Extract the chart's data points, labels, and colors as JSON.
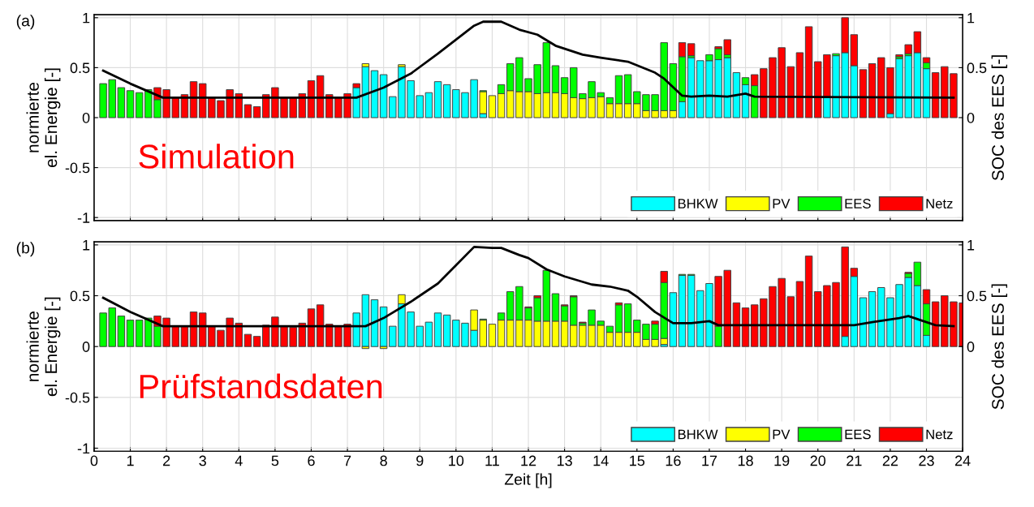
{
  "chart_data": [
    {
      "type": "bar",
      "stacked": true,
      "annotations": [
        "(a)",
        "Simulation"
      ],
      "ylabel": "normierte\nel. Energie [-]",
      "y2label": "SOC des EES [-]",
      "xlim": [
        0,
        24
      ],
      "xticks": [
        0,
        1,
        2,
        3,
        4,
        5,
        6,
        7,
        8,
        9,
        10,
        11,
        12,
        13,
        14,
        15,
        16,
        17,
        18,
        19,
        20,
        21,
        22,
        23,
        24
      ],
      "ylim": [
        -1.03,
        1.03
      ],
      "yticks": [
        -1,
        -0.5,
        0,
        0.5,
        1
      ],
      "y2lim": [
        -1.03,
        1.03
      ],
      "y2ticks": [
        0,
        0.5,
        1
      ],
      "grid": true,
      "legend": "bottom right",
      "tick_labels": "y",
      "x": [
        0.25,
        0.5,
        0.75,
        1,
        1.25,
        1.5,
        1.75,
        2,
        2.25,
        2.5,
        2.75,
        3,
        3.25,
        3.5,
        3.75,
        4,
        4.25,
        4.5,
        4.75,
        5,
        5.25,
        5.5,
        5.75,
        6,
        6.25,
        6.5,
        6.75,
        7,
        7.25,
        7.5,
        7.75,
        8,
        8.25,
        8.5,
        8.75,
        9,
        9.25,
        9.5,
        9.75,
        10,
        10.25,
        10.5,
        10.75,
        11,
        11.25,
        11.5,
        11.75,
        12,
        12.25,
        12.5,
        12.75,
        13,
        13.25,
        13.5,
        13.75,
        14,
        14.25,
        14.5,
        14.75,
        15,
        15.25,
        15.5,
        15.75,
        16,
        16.25,
        16.5,
        16.75,
        17,
        17.25,
        17.5,
        17.75,
        18,
        18.25,
        18.5,
        18.75,
        19,
        19.25,
        19.5,
        19.75,
        20,
        20.25,
        20.5,
        20.75,
        21,
        21.25,
        21.5,
        21.75,
        22,
        22.25,
        22.5,
        22.75,
        23,
        23.25,
        23.5,
        23.75
      ],
      "series": [
        {
          "name": "BHKW",
          "color": "#00ffff",
          "values": [
            null,
            null,
            null,
            null,
            null,
            null,
            null,
            null,
            null,
            null,
            null,
            null,
            null,
            null,
            null,
            null,
            null,
            null,
            null,
            null,
            null,
            null,
            null,
            null,
            null,
            null,
            null,
            null,
            0.3,
            0.51,
            0.47,
            0.43,
            0.21,
            0.51,
            0.37,
            0.22,
            0.25,
            0.36,
            0.33,
            0.28,
            0.25,
            0.38,
            0.04,
            null,
            null,
            null,
            null,
            null,
            null,
            null,
            null,
            null,
            null,
            null,
            null,
            null,
            null,
            null,
            null,
            null,
            null,
            null,
            null,
            null,
            0.16,
            0.6,
            0.57,
            0.57,
            0.58,
            0.6,
            0.45,
            0.33,
            null,
            null,
            null,
            null,
            null,
            null,
            null,
            null,
            0.21,
            0.62,
            0.65,
            0.52,
            null,
            null,
            null,
            0.04,
            0.59,
            0.62,
            0.65,
            0.49,
            null,
            null,
            null
          ]
        },
        {
          "name": "PV",
          "color": "#ffff00",
          "values": [
            null,
            null,
            null,
            null,
            null,
            null,
            null,
            null,
            null,
            null,
            null,
            null,
            null,
            null,
            null,
            null,
            null,
            null,
            null,
            null,
            null,
            null,
            null,
            null,
            null,
            null,
            null,
            null,
            null,
            0.03,
            null,
            null,
            null,
            0.02,
            null,
            null,
            null,
            null,
            null,
            null,
            null,
            null,
            0.22,
            0.22,
            0.24,
            0.27,
            0.26,
            0.26,
            0.24,
            0.25,
            0.25,
            0.24,
            0.2,
            0.19,
            0.2,
            0.21,
            0.14,
            0.14,
            0.14,
            0.14,
            0.07,
            0.07,
            0.07,
            0.07,
            null,
            null,
            null,
            null,
            null,
            null,
            null,
            null,
            null,
            null,
            null,
            null,
            null,
            null,
            null,
            null,
            null,
            null,
            null,
            null,
            null,
            null,
            null,
            null,
            null,
            null,
            null,
            null,
            null,
            null,
            null
          ]
        },
        {
          "name": "EES",
          "color": "#00ff00",
          "values": [
            0.34,
            0.38,
            0.3,
            0.27,
            0.25,
            0.28,
            0.18,
            null,
            null,
            null,
            null,
            null,
            null,
            null,
            null,
            null,
            null,
            null,
            null,
            null,
            null,
            null,
            null,
            null,
            null,
            null,
            null,
            null,
            null,
            null,
            null,
            null,
            null,
            null,
            null,
            null,
            null,
            null,
            null,
            null,
            null,
            null,
            0.01,
            null,
            0.09,
            0.27,
            0.34,
            0.13,
            0.29,
            0.5,
            0.27,
            0.16,
            0.3,
            0.05,
            0.16,
            0.04,
            0.06,
            0.28,
            0.29,
            0.12,
            0.16,
            0.16,
            0.68,
            0.47,
            0.45,
            0.02,
            null,
            0.06,
            0.11,
            0.03,
            null,
            0.07,
            0.32,
            null,
            null,
            null,
            null,
            null,
            null,
            null,
            null,
            0.02,
            null,
            null,
            null,
            null,
            null,
            null,
            0.02,
            0.02,
            null,
            0.06,
            null,
            null,
            null
          ]
        },
        {
          "name": "Netz",
          "color": "#ff0000",
          "values": [
            null,
            null,
            null,
            null,
            null,
            null,
            0.12,
            0.28,
            0.2,
            0.23,
            0.36,
            0.34,
            0.2,
            0.17,
            0.28,
            0.24,
            0.13,
            0.11,
            0.23,
            0.3,
            0.2,
            0.2,
            0.24,
            0.37,
            0.42,
            0.23,
            0.2,
            0.24,
            0.04,
            null,
            null,
            null,
            null,
            null,
            null,
            null,
            null,
            null,
            null,
            null,
            null,
            null,
            null,
            null,
            null,
            null,
            null,
            null,
            null,
            null,
            null,
            null,
            null,
            null,
            null,
            null,
            null,
            null,
            null,
            null,
            null,
            null,
            null,
            null,
            0.14,
            0.12,
            null,
            null,
            0.02,
            0.15,
            null,
            null,
            0.11,
            0.49,
            0.6,
            0.7,
            0.51,
            0.65,
            0.91,
            0.56,
            0.42,
            null,
            0.35,
            0.31,
            0.48,
            0.54,
            0.6,
            0.46,
            0.02,
            0.09,
            0.21,
            0.05,
            0.45,
            0.51,
            0.44
          ]
        },
        {
          "type": "line",
          "axis": "y2",
          "color": "#000000",
          "x": [
            0.25,
            1.0,
            1.9,
            7.25,
            8,
            8.75,
            9.5,
            10,
            10.5,
            10.75,
            11.25,
            11.75,
            12.25,
            12.75,
            13.5,
            14,
            14.75,
            15.5,
            15.75,
            16.25,
            16.5,
            17,
            17.5,
            18,
            18.25,
            23.75
          ],
          "values": [
            0.47,
            0.34,
            0.2,
            0.2,
            0.3,
            0.44,
            0.64,
            0.78,
            0.92,
            0.96,
            0.96,
            0.88,
            0.83,
            0.72,
            0.63,
            0.6,
            0.56,
            0.45,
            0.39,
            0.22,
            0.21,
            0.22,
            0.21,
            0.24,
            0.21,
            0.2
          ]
        }
      ]
    },
    {
      "type": "bar",
      "stacked": true,
      "annotations": [
        "(b)",
        "Prüfstandsdaten"
      ],
      "xlabel": "Zeit [h]",
      "ylabel": "normierte\nel. Energie [-]",
      "y2label": "SOC des EES [-]",
      "xlim": [
        0,
        24
      ],
      "xticks": [
        0,
        1,
        2,
        3,
        4,
        5,
        6,
        7,
        8,
        9,
        10,
        11,
        12,
        13,
        14,
        15,
        16,
        17,
        18,
        19,
        20,
        21,
        22,
        23,
        24
      ],
      "ylim": [
        -1.03,
        1.03
      ],
      "yticks": [
        -1,
        -0.5,
        0,
        0.5,
        1
      ],
      "y2lim": [
        -1.03,
        1.03
      ],
      "y2ticks": [
        0,
        0.5,
        1
      ],
      "grid": true,
      "legend": "bottom right",
      "x": [
        0.25,
        0.5,
        0.75,
        1,
        1.25,
        1.5,
        1.75,
        2,
        2.25,
        2.5,
        2.75,
        3,
        3.25,
        3.5,
        3.75,
        4,
        4.25,
        4.5,
        4.75,
        5,
        5.25,
        5.5,
        5.75,
        6,
        6.25,
        6.5,
        6.75,
        7,
        7.25,
        7.5,
        7.75,
        8,
        8.25,
        8.5,
        8.75,
        9,
        9.25,
        9.5,
        9.75,
        10,
        10.25,
        10.5,
        10.75,
        11,
        11.25,
        11.5,
        11.75,
        12,
        12.25,
        12.5,
        12.75,
        13,
        13.25,
        13.5,
        13.75,
        14,
        14.25,
        14.5,
        14.75,
        15,
        15.25,
        15.5,
        15.75,
        16,
        16.25,
        16.5,
        16.75,
        17,
        17.25,
        17.5,
        17.75,
        18,
        18.25,
        18.5,
        18.75,
        19,
        19.25,
        19.5,
        19.75,
        20,
        20.25,
        20.5,
        20.75,
        21,
        21.25,
        21.5,
        21.75,
        22,
        22.25,
        22.5,
        22.75,
        23,
        23.25,
        23.5,
        23.75,
        24
      ],
      "series": [
        {
          "name": "BHKW",
          "color": "#00ffff",
          "values": [
            null,
            null,
            null,
            null,
            null,
            null,
            null,
            null,
            null,
            null,
            null,
            null,
            null,
            null,
            null,
            null,
            null,
            null,
            null,
            null,
            null,
            null,
            null,
            null,
            null,
            null,
            null,
            null,
            0.33,
            0.51,
            0.46,
            0.39,
            0.2,
            0.42,
            0.34,
            0.2,
            0.24,
            0.33,
            0.31,
            0.26,
            0.23,
            0.16,
            null,
            null,
            null,
            null,
            null,
            null,
            null,
            null,
            null,
            null,
            null,
            null,
            null,
            null,
            null,
            null,
            null,
            null,
            null,
            null,
            0.02,
            0.53,
            0.7,
            0.7,
            0.55,
            0.62,
            null,
            null,
            null,
            null,
            null,
            null,
            null,
            null,
            null,
            null,
            null,
            null,
            null,
            null,
            0.1,
            0.69,
            0.48,
            0.54,
            0.58,
            0.48,
            0.61,
            0.68,
            0.6,
            0.11,
            null,
            null,
            null,
            null
          ]
        },
        {
          "name": "PV",
          "color": "#ffff00",
          "values": [
            null,
            null,
            null,
            null,
            null,
            null,
            null,
            null,
            null,
            null,
            null,
            null,
            null,
            null,
            null,
            null,
            null,
            null,
            null,
            null,
            null,
            null,
            null,
            null,
            null,
            null,
            null,
            null,
            null,
            -0.02,
            null,
            -0.02,
            null,
            0.09,
            null,
            null,
            null,
            null,
            null,
            null,
            null,
            0.2,
            0.26,
            0.22,
            0.26,
            0.26,
            0.26,
            0.26,
            0.25,
            0.25,
            0.25,
            0.25,
            0.21,
            0.21,
            0.21,
            0.21,
            0.14,
            0.14,
            0.14,
            0.14,
            0.07,
            0.07,
            0.06,
            null,
            null,
            null,
            null,
            null,
            null,
            null,
            null,
            null,
            null,
            null,
            null,
            null,
            null,
            null,
            null,
            null,
            null,
            null,
            null,
            null,
            null,
            null,
            null,
            null,
            null,
            null,
            null,
            null,
            null,
            null,
            null,
            null
          ]
        },
        {
          "name": "EES",
          "color": "#00ff00",
          "values": [
            0.33,
            0.38,
            0.3,
            0.26,
            0.26,
            0.28,
            0.2,
            null,
            null,
            null,
            null,
            null,
            null,
            null,
            null,
            null,
            null,
            null,
            null,
            null,
            null,
            null,
            null,
            null,
            null,
            null,
            null,
            null,
            null,
            null,
            null,
            null,
            null,
            null,
            null,
            null,
            null,
            null,
            null,
            null,
            null,
            null,
            0.01,
            null,
            0.07,
            0.28,
            0.33,
            0.12,
            0.23,
            0.5,
            0.27,
            0.15,
            0.28,
            0.02,
            0.15,
            0.04,
            0.06,
            0.27,
            0.28,
            0.12,
            0.15,
            0.15,
            0.55,
            null,
            0.01,
            0.01,
            null,
            null,
            0.2,
            null,
            null,
            null,
            null,
            null,
            null,
            null,
            null,
            null,
            null,
            null,
            null,
            null,
            null,
            null,
            null,
            null,
            null,
            null,
            null,
            0.04,
            0.23,
            0.31,
            null,
            null,
            null,
            null
          ]
        },
        {
          "name": "Netz",
          "color": "#ff0000",
          "values": [
            null,
            null,
            null,
            null,
            null,
            null,
            0.1,
            0.28,
            0.2,
            0.2,
            0.34,
            0.33,
            0.2,
            0.16,
            0.28,
            0.23,
            0.12,
            0.1,
            0.21,
            0.29,
            0.2,
            0.19,
            0.23,
            0.37,
            0.41,
            0.22,
            0.2,
            0.22,
            null,
            null,
            null,
            null,
            null,
            null,
            null,
            null,
            null,
            null,
            null,
            null,
            null,
            null,
            null,
            null,
            null,
            null,
            null,
            0.01,
            0.02,
            null,
            null,
            0.01,
            0.01,
            0.01,
            null,
            null,
            null,
            0.02,
            null,
            null,
            null,
            0.03,
            0.11,
            null,
            null,
            null,
            null,
            null,
            0.49,
            0.75,
            0.43,
            0.38,
            0.41,
            0.47,
            0.59,
            0.67,
            0.49,
            0.64,
            0.89,
            0.54,
            0.6,
            0.63,
            0.88,
            0.08,
            null,
            null,
            null,
            null,
            null,
            0.01,
            null,
            0.14,
            0.44,
            0.5,
            0.44,
            0.43
          ]
        },
        {
          "type": "line",
          "axis": "y2",
          "color": "#000000",
          "x": [
            0.25,
            1.0,
            1.9,
            7.5,
            8,
            8.75,
            9.5,
            10,
            10.5,
            11,
            11.25,
            11.75,
            12,
            12.5,
            13,
            13.75,
            14.25,
            14.75,
            15,
            15.5,
            16,
            16.5,
            17,
            17.25,
            21,
            21.5,
            22.25,
            22.5,
            22.75,
            23.25,
            23.75
          ],
          "values": [
            0.48,
            0.34,
            0.2,
            0.2,
            0.28,
            0.44,
            0.62,
            0.8,
            0.98,
            0.97,
            0.97,
            0.9,
            0.87,
            0.76,
            0.69,
            0.61,
            0.59,
            0.55,
            0.49,
            0.34,
            0.23,
            0.23,
            0.25,
            0.21,
            0.21,
            0.24,
            0.28,
            0.3,
            0.27,
            0.21,
            0.2
          ]
        }
      ]
    }
  ]
}
